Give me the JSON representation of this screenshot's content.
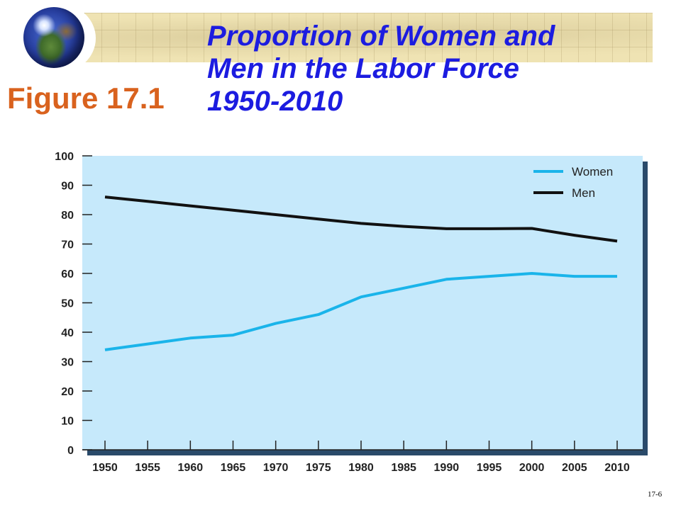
{
  "slide": {
    "figure_label": "Figure 17.1",
    "title_lines": [
      "Proportion of Women and",
      "Men in the Labor Force",
      "1950-2010"
    ],
    "slide_number": "17-6"
  },
  "colors": {
    "title": "#1c1ce0",
    "figure_label": "#d9621e",
    "plot_background": "#c6e9fb",
    "women": "#1ab4ea",
    "men": "#111111"
  },
  "chart_data": {
    "type": "line",
    "title": "",
    "xlabel": "",
    "ylabel": "",
    "x": [
      1950,
      1955,
      1960,
      1965,
      1970,
      1975,
      1980,
      1985,
      1990,
      1995,
      2000,
      2005,
      2010
    ],
    "x_tick_labels": [
      "1950",
      "1955",
      "1960",
      "1965",
      "1970",
      "1975",
      "1980",
      "1985",
      "1990",
      "1995",
      "2000",
      "2005",
      "2010"
    ],
    "y_ticks": [
      0,
      10,
      20,
      30,
      40,
      50,
      60,
      70,
      80,
      90,
      100
    ],
    "ylim": [
      0,
      100
    ],
    "grid": false,
    "legend_position": "top-right",
    "series": [
      {
        "name": "Women",
        "color": "#1ab4ea",
        "values": [
          34,
          36,
          38,
          39,
          43,
          46,
          52,
          55,
          58,
          59,
          60,
          59,
          59
        ]
      },
      {
        "name": "Men",
        "color": "#111111",
        "values": [
          86,
          84.5,
          83,
          81.5,
          80,
          78.5,
          77,
          76,
          75.2,
          75.2,
          75.3,
          73,
          71
        ]
      }
    ]
  }
}
